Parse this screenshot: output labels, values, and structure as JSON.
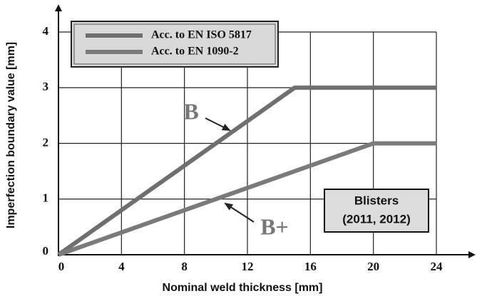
{
  "chart_data": {
    "type": "line",
    "xlabel": "Nominal weld thickness  [mm]",
    "ylabel": "Imperfection boundary value  [mm]",
    "series": [
      {
        "name": "Acc. to EN ISO 5817",
        "color": "#6f6f6f",
        "x": [
          0,
          15,
          24
        ],
        "values": [
          0,
          3,
          3
        ]
      },
      {
        "name": "Acc. to EN 1090-2",
        "color": "#7a7a7a",
        "x": [
          0,
          20,
          24
        ],
        "values": [
          0,
          2,
          2
        ]
      }
    ],
    "xlim": [
      0,
      24
    ],
    "xticks": [
      0,
      4,
      8,
      12,
      16,
      20,
      24
    ],
    "ylim": [
      0,
      4
    ],
    "yticks": [
      0,
      1,
      2,
      3,
      4
    ],
    "grid": true,
    "annotations": [
      {
        "text": "B"
      },
      {
        "text": "B+"
      },
      {
        "text": "Blisters"
      },
      {
        "text": "(2011, 2012)"
      }
    ]
  }
}
